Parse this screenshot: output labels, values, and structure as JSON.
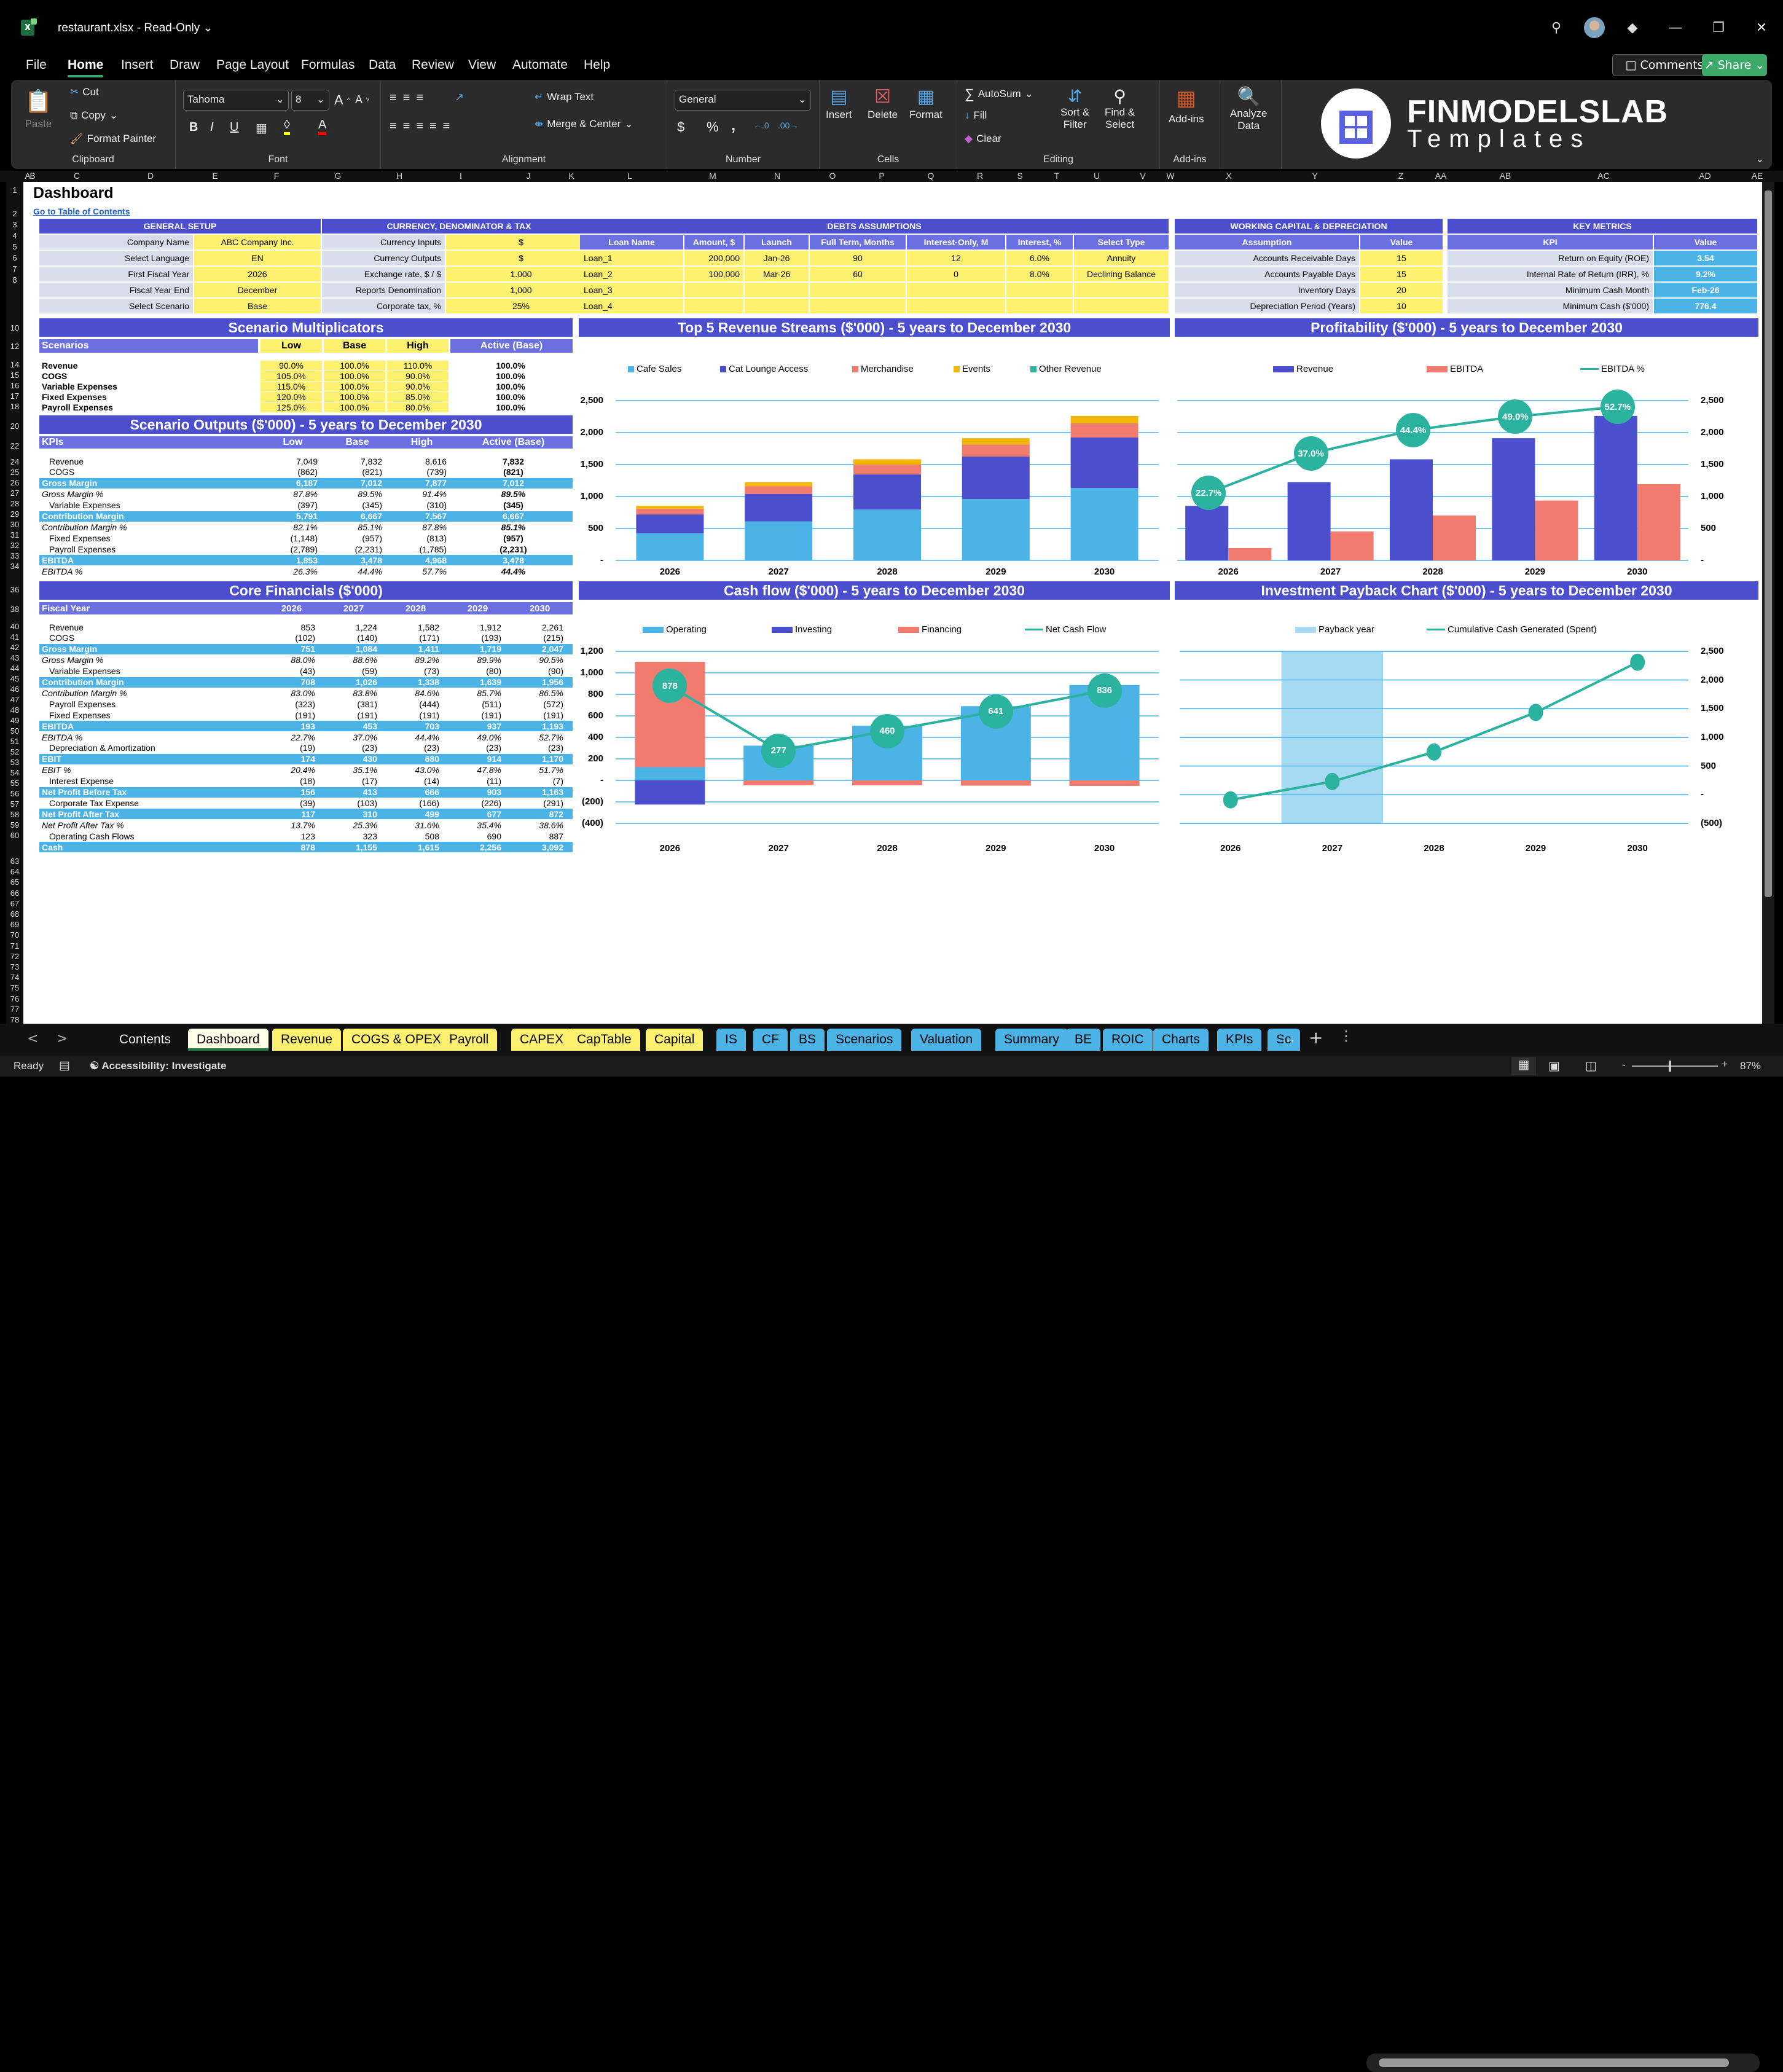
{
  "window": {
    "app_icon": "excel-icon",
    "title": "restaurant.xlsx  -  Read-Only",
    "title_dropdown": "v",
    "controls": [
      "search-icon",
      "avatar",
      "diamond-icon",
      "minimize-icon",
      "restore-icon",
      "close-icon"
    ]
  },
  "menu": {
    "items": [
      "File",
      "Home",
      "Insert",
      "Draw",
      "Page Layout",
      "Formulas",
      "Data",
      "Review",
      "View",
      "Automate",
      "Help"
    ],
    "active": "Home",
    "comments_label": "Comments",
    "share_label": "Share"
  },
  "ribbon": {
    "clipboard": {
      "label": "Clipboard",
      "paste": "Paste",
      "cut": "Cut",
      "copy": "Copy",
      "format_painter": "Format Painter"
    },
    "font": {
      "label": "Font",
      "font_name": "Tahoma",
      "font_size": "8",
      "bold": "B",
      "italic": "I",
      "underline": "U",
      "fill_color": "#ffff00",
      "font_color": "#ff0000"
    },
    "alignment": {
      "label": "Alignment",
      "wrap_text": "Wrap Text",
      "merge_center": "Merge & Center"
    },
    "number": {
      "label": "Number",
      "format": "General",
      "currency": "$",
      "percent": "%",
      "comma": ","
    },
    "cells": {
      "label": "Cells",
      "insert": "Insert",
      "delete": "Delete",
      "format": "Format"
    },
    "editing": {
      "label": "Editing",
      "autosum": "AutoSum",
      "fill": "Fill",
      "clear": "Clear",
      "sort_filter_1": "Sort &",
      "sort_filter_2": "Filter",
      "find_select_1": "Find &",
      "find_select_2": "Select"
    },
    "addins": {
      "label": "Add-ins",
      "addins": "Add-ins"
    },
    "analyze": {
      "line1": "Analyze",
      "line2": "Data"
    },
    "logo": {
      "line1": "FINMODELSLAB",
      "line2": "Templates"
    }
  },
  "columns": [
    "A",
    "B",
    "C",
    "D",
    "E",
    "F",
    "G",
    "H",
    "I",
    "J",
    "K",
    "L",
    "M",
    "N",
    "O",
    "P",
    "Q",
    "R",
    "S",
    "T",
    "U",
    "V",
    "W",
    "X",
    "Y",
    "Z",
    "AA",
    "AB",
    "AC",
    "AD",
    "AE"
  ],
  "rows_visible": "1-78",
  "sheet": {
    "title": "Dashboard",
    "toc_link": "Go to Table of Contents",
    "general_setup": {
      "title": "GENERAL SETUP",
      "rows": [
        {
          "label": "Company Name",
          "value": "ABC Company Inc."
        },
        {
          "label": "Select Language",
          "value": "EN"
        },
        {
          "label": "First Fiscal Year",
          "value": "2026"
        },
        {
          "label": "Fiscal Year End",
          "value": "December"
        },
        {
          "label": "Select Scenario",
          "value": "Base"
        }
      ]
    },
    "currency": {
      "title": "CURRENCY, DENOMINATOR & TAX",
      "rows": [
        {
          "label": "Currency Inputs",
          "value": "$"
        },
        {
          "label": "Currency Outputs",
          "value": "$"
        },
        {
          "label": "Exchange rate, $ / $",
          "value": "1.000"
        },
        {
          "label": "Reports Denomination",
          "value": "1,000"
        },
        {
          "label": "Corporate tax, %",
          "value": "25%"
        }
      ]
    },
    "debts": {
      "title": "DEBTS ASSUMPTIONS",
      "headers": [
        "Loan Name",
        "Amount, $",
        "Launch",
        "Full Term, Months",
        "Interest-Only, M",
        "Interest, %",
        "Select Type"
      ],
      "rows": [
        [
          "Loan_1",
          "200,000",
          "Jan-26",
          "90",
          "12",
          "6.0%",
          "Annuity"
        ],
        [
          "Loan_2",
          "100,000",
          "Mar-26",
          "60",
          "0",
          "8.0%",
          "Declining Balance"
        ],
        [
          "Loan_3",
          "",
          "",
          "",
          "",
          "",
          ""
        ],
        [
          "Loan_4",
          "",
          "",
          "",
          "",
          "",
          ""
        ]
      ]
    },
    "working_capital": {
      "title": "WORKING CAPITAL & DEPRECIATION",
      "headers": [
        "Assumption",
        "Value"
      ],
      "rows": [
        {
          "label": "Accounts Receivable Days",
          "value": "15"
        },
        {
          "label": "Accounts Payable Days",
          "value": "15"
        },
        {
          "label": "Inventory Days",
          "value": "20"
        },
        {
          "label": "Depreciation Period (Years)",
          "value": "10"
        }
      ]
    },
    "key_metrics": {
      "title": "KEY METRICS",
      "headers": [
        "KPI",
        "Value"
      ],
      "rows": [
        {
          "label": "Return on Equity (ROE)",
          "value": "3.54"
        },
        {
          "label": "Internal Rate of Return (IRR), %",
          "value": "9.2%"
        },
        {
          "label": "Minimum Cash Month",
          "value": "Feb-26"
        },
        {
          "label": "Minimum Cash ($'000)",
          "value": "776.4"
        }
      ]
    },
    "scenario_mult": {
      "title": "Scenario Multiplicators",
      "headers": [
        "Scenarios",
        "Low",
        "Base",
        "High",
        "Active (Base)"
      ],
      "rows": [
        [
          "Revenue",
          "90.0%",
          "100.0%",
          "110.0%",
          "100.0%"
        ],
        [
          "COGS",
          "105.0%",
          "100.0%",
          "90.0%",
          "100.0%"
        ],
        [
          "Variable Expenses",
          "115.0%",
          "100.0%",
          "90.0%",
          "100.0%"
        ],
        [
          "Fixed Expenses",
          "120.0%",
          "100.0%",
          "85.0%",
          "100.0%"
        ],
        [
          "Payroll Expenses",
          "125.0%",
          "100.0%",
          "80.0%",
          "100.0%"
        ]
      ]
    },
    "scenario_out": {
      "title": "Scenario Outputs ($'000) - 5 years to December 2030",
      "headers": [
        "KPIs",
        "Low",
        "Base",
        "High",
        "Active (Base)"
      ],
      "rows": [
        {
          "cells": [
            "Revenue",
            "7,049",
            "7,832",
            "8,616",
            "7,832"
          ],
          "style": "ind"
        },
        {
          "cells": [
            "COGS",
            "(862)",
            "(821)",
            "(739)",
            "(821)"
          ],
          "style": "ind"
        },
        {
          "cells": [
            "Gross Margin",
            "6,187",
            "7,012",
            "7,877",
            "7,012"
          ],
          "style": "hl"
        },
        {
          "cells": [
            "Gross Margin %",
            "87.8%",
            "89.5%",
            "91.4%",
            "89.5%"
          ],
          "style": "it"
        },
        {
          "cells": [
            "Variable Expenses",
            "(397)",
            "(345)",
            "(310)",
            "(345)"
          ],
          "style": "ind"
        },
        {
          "cells": [
            "Contribution Margin",
            "5,791",
            "6,667",
            "7,567",
            "6,667"
          ],
          "style": "hl"
        },
        {
          "cells": [
            "Contribution Margin %",
            "82.1%",
            "85.1%",
            "87.8%",
            "85.1%"
          ],
          "style": "it"
        },
        {
          "cells": [
            "Fixed Expenses",
            "(1,148)",
            "(957)",
            "(813)",
            "(957)"
          ],
          "style": "ind"
        },
        {
          "cells": [
            "Payroll Expenses",
            "(2,789)",
            "(2,231)",
            "(1,785)",
            "(2,231)"
          ],
          "style": "ind"
        },
        {
          "cells": [
            "EBITDA",
            "1,853",
            "3,478",
            "4,968",
            "3,478"
          ],
          "style": "hl"
        },
        {
          "cells": [
            "EBITDA %",
            "26.3%",
            "44.4%",
            "57.7%",
            "44.4%"
          ],
          "style": "it"
        }
      ]
    },
    "core": {
      "title": "Core Financials ($'000)",
      "headers": [
        "Fiscal Year",
        "2026",
        "2027",
        "2028",
        "2029",
        "2030"
      ],
      "rows": [
        {
          "cells": [
            "Revenue",
            "853",
            "1,224",
            "1,582",
            "1,912",
            "2,261"
          ],
          "style": "ind"
        },
        {
          "cells": [
            "COGS",
            "(102)",
            "(140)",
            "(171)",
            "(193)",
            "(215)"
          ],
          "style": "ind"
        },
        {
          "cells": [
            "Gross Margin",
            "751",
            "1,084",
            "1,411",
            "1,719",
            "2,047"
          ],
          "style": "hl"
        },
        {
          "cells": [
            "Gross Margin %",
            "88.0%",
            "88.6%",
            "89.2%",
            "89.9%",
            "90.5%"
          ],
          "style": "it"
        },
        {
          "cells": [
            "Variable Expenses",
            "(43)",
            "(59)",
            "(73)",
            "(80)",
            "(90)"
          ],
          "style": "ind"
        },
        {
          "cells": [
            "Contribution Margin",
            "708",
            "1,026",
            "1,338",
            "1,639",
            "1,956"
          ],
          "style": "hl"
        },
        {
          "cells": [
            "Contribution Margin %",
            "83.0%",
            "83.8%",
            "84.6%",
            "85.7%",
            "86.5%"
          ],
          "style": "it"
        },
        {
          "cells": [
            "Payroll Expenses",
            "(323)",
            "(381)",
            "(444)",
            "(511)",
            "(572)"
          ],
          "style": "ind"
        },
        {
          "cells": [
            "Fixed Expenses",
            "(191)",
            "(191)",
            "(191)",
            "(191)",
            "(191)"
          ],
          "style": "ind"
        },
        {
          "cells": [
            "EBITDA",
            "193",
            "453",
            "703",
            "937",
            "1,193"
          ],
          "style": "hl"
        },
        {
          "cells": [
            "EBITDA %",
            "22.7%",
            "37.0%",
            "44.4%",
            "49.0%",
            "52.7%"
          ],
          "style": "it"
        },
        {
          "cells": [
            "Depreciation & Amortization",
            "(19)",
            "(23)",
            "(23)",
            "(23)",
            "(23)"
          ],
          "style": "ind"
        },
        {
          "cells": [
            "EBIT",
            "174",
            "430",
            "680",
            "914",
            "1,170"
          ],
          "style": "hl"
        },
        {
          "cells": [
            "EBIT %",
            "20.4%",
            "35.1%",
            "43.0%",
            "47.8%",
            "51.7%"
          ],
          "style": "it"
        },
        {
          "cells": [
            "Interest Expense",
            "(18)",
            "(17)",
            "(14)",
            "(11)",
            "(7)"
          ],
          "style": "ind"
        },
        {
          "cells": [
            "Net Profit Before Tax",
            "156",
            "413",
            "666",
            "903",
            "1,163"
          ],
          "style": "hl"
        },
        {
          "cells": [
            "Corporate Tax Expense",
            "(39)",
            "(103)",
            "(166)",
            "(226)",
            "(291)"
          ],
          "style": "ind"
        },
        {
          "cells": [
            "Net Profit After Tax",
            "117",
            "310",
            "499",
            "677",
            "872"
          ],
          "style": "hl"
        },
        {
          "cells": [
            "Net Profit After Tax %",
            "13.7%",
            "25.3%",
            "31.6%",
            "35.4%",
            "38.6%"
          ],
          "style": "it"
        },
        {
          "cells": [
            "Operating Cash Flows",
            "123",
            "323",
            "508",
            "690",
            "887"
          ],
          "style": "ind"
        },
        {
          "cells": [
            "Cash",
            "878",
            "1,155",
            "1,615",
            "2,256",
            "3,092"
          ],
          "style": "hl"
        }
      ]
    }
  },
  "colors": {
    "header_blue": "#4b4fce",
    "subheader_blue": "#6b70e0",
    "input_yellow": "#fff170",
    "highlight_cyan": "#4bb3e6",
    "label_gray": "#d9dcea",
    "salmon": "#f07b6e",
    "gold": "#f2b705",
    "teal": "#2bb3a0",
    "payback": "#a6d9f2"
  },
  "chart_data": [
    {
      "type": "bar",
      "stacked": true,
      "title": "Top 5 Revenue Streams ($'000) - 5 years to December 2030",
      "categories": [
        "2026",
        "2027",
        "2028",
        "2029",
        "2030"
      ],
      "series": [
        {
          "name": "Cafe Sales",
          "color": "#4bb3e6",
          "values": [
            425,
            610,
            795,
            960,
            1135
          ]
        },
        {
          "name": "Cat Lounge Access",
          "color": "#4b4fce",
          "values": [
            295,
            430,
            550,
            665,
            790
          ]
        },
        {
          "name": "Merchandise",
          "color": "#f07b6e",
          "values": [
            90,
            120,
            155,
            190,
            220
          ]
        },
        {
          "name": "Events",
          "color": "#f2b705",
          "values": [
            43,
            64,
            82,
            97,
            116
          ]
        },
        {
          "name": "Other Revenue",
          "color": "#2bb3a0",
          "values": [
            0,
            0,
            0,
            0,
            0
          ]
        }
      ],
      "yticks": [
        "-",
        "500",
        "1,000",
        "1,500",
        "2,000",
        "2,500"
      ],
      "ylim": [
        0,
        2500
      ],
      "grid": true,
      "legend_position": "top"
    },
    {
      "type": "bar",
      "title": "Profitability ($'000) - 5 years to December 2030",
      "categories": [
        "2026",
        "2027",
        "2028",
        "2029",
        "2030"
      ],
      "series": [
        {
          "name": "Revenue",
          "color": "#4b4fce",
          "values": [
            853,
            1224,
            1582,
            1912,
            2261
          ]
        },
        {
          "name": "EBITDA",
          "color": "#f07b6e",
          "values": [
            193,
            453,
            703,
            937,
            1193
          ]
        },
        {
          "name": "EBITDA %",
          "type": "line",
          "color": "#2bb3a0",
          "values": [
            22.7,
            37.0,
            44.4,
            49.0,
            52.7
          ],
          "labels": [
            "22.7%",
            "37.0%",
            "44.4%",
            "49.0%",
            "52.7%"
          ]
        }
      ],
      "yticks": [
        "-",
        "500",
        "1,000",
        "1,500",
        "2,000",
        "2,500"
      ],
      "ylim": [
        0,
        2500
      ],
      "y_axis_side": "right",
      "grid": true,
      "legend_position": "top"
    },
    {
      "type": "bar",
      "stacked": true,
      "title": "Cash flow ($'000) - 5 years to December 2030",
      "categories": [
        "2026",
        "2027",
        "2028",
        "2029",
        "2030"
      ],
      "series": [
        {
          "name": "Operating",
          "color": "#4bb3e6",
          "values": [
            123,
            323,
            508,
            690,
            887
          ]
        },
        {
          "name": "Investing",
          "color": "#4b4fce",
          "values": [
            -225,
            0,
            0,
            0,
            0
          ]
        },
        {
          "name": "Financing",
          "color": "#f07b6e",
          "values": [
            980,
            -46,
            -46,
            -49,
            -51
          ]
        },
        {
          "name": "Net Cash Flow",
          "type": "line",
          "color": "#2bb3a0",
          "values": [
            878,
            277,
            460,
            641,
            836
          ]
        }
      ],
      "yticks": [
        "(400)",
        "(200)",
        "-",
        "200",
        "400",
        "600",
        "800",
        "1,000",
        "1,200"
      ],
      "ylim": [
        -400,
        1200
      ],
      "grid": true,
      "legend_position": "top"
    },
    {
      "type": "line",
      "title": "Investment Payback Chart ($'000) - 5 years to December 2030",
      "categories": [
        "2026",
        "2027",
        "2028",
        "2029",
        "2030"
      ],
      "series": [
        {
          "name": "Payback year",
          "type": "bar",
          "color": "#a6d9f2",
          "values": [
            0,
            1,
            0,
            0,
            0
          ]
        },
        {
          "name": "Cumulative Cash Generated (Spent)",
          "color": "#2bb3a0",
          "values": [
            -90,
            230,
            745,
            1435,
            2310
          ]
        }
      ],
      "yticks": [
        "(500)",
        "-",
        "500",
        "1,000",
        "1,500",
        "2,000",
        "2,500"
      ],
      "ylim": [
        -500,
        2500
      ],
      "y_axis_side": "right",
      "grid": true,
      "legend_position": "top"
    }
  ],
  "tabs": {
    "nav_prev": "<",
    "nav_next": ">",
    "items": [
      {
        "label": "Contents",
        "color": "plain"
      },
      {
        "label": "Dashboard",
        "color": "active"
      },
      {
        "label": "Revenue",
        "color": "y"
      },
      {
        "label": "COGS & OPEX",
        "color": "y"
      },
      {
        "label": "Payroll",
        "color": "y"
      },
      {
        "label": "CAPEX",
        "color": "y"
      },
      {
        "label": "CapTable",
        "color": "y"
      },
      {
        "label": "Capital",
        "color": "y"
      },
      {
        "label": "IS",
        "color": "b"
      },
      {
        "label": "CF",
        "color": "b"
      },
      {
        "label": "BS",
        "color": "b"
      },
      {
        "label": "Scenarios",
        "color": "b"
      },
      {
        "label": "Valuation",
        "color": "b"
      },
      {
        "label": "Summary",
        "color": "b"
      },
      {
        "label": "BE",
        "color": "b"
      },
      {
        "label": "ROIC",
        "color": "b"
      },
      {
        "label": "Charts",
        "color": "b"
      },
      {
        "label": "KPIs",
        "color": "b"
      },
      {
        "label": "Sc",
        "color": "b"
      }
    ],
    "more": "...",
    "add": "+"
  },
  "status": {
    "ready": "Ready",
    "accessibility": "Accessibility: Investigate",
    "zoom": "87%"
  }
}
